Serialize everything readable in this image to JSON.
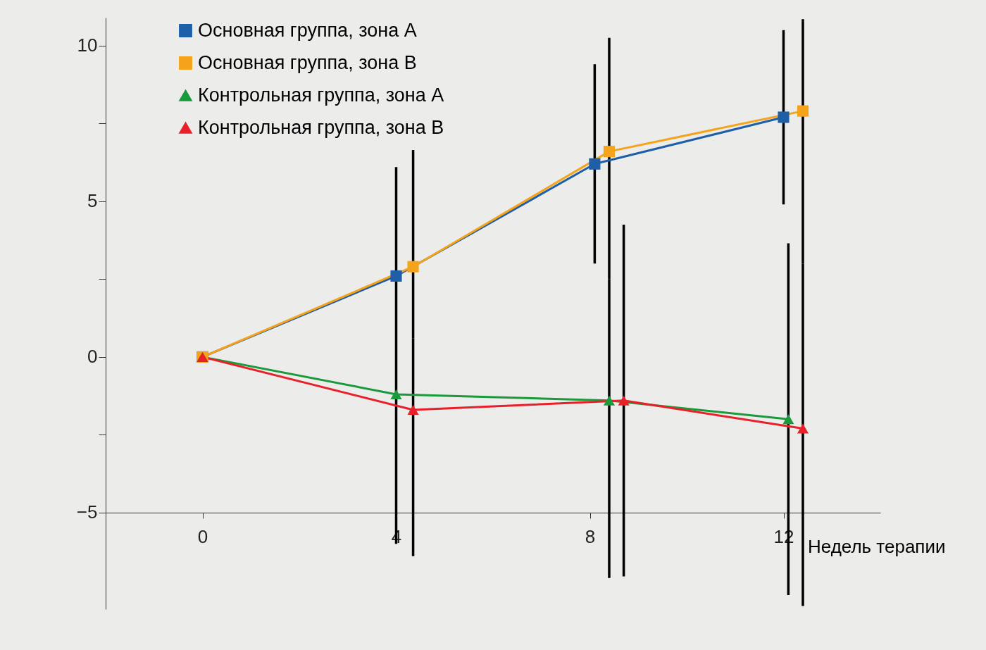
{
  "chart_data": {
    "type": "line",
    "xlabel": "Недель терапии",
    "xlim": [
      -2,
      14
    ],
    "xticks": [
      0,
      4,
      8,
      12
    ],
    "ylim": [
      -8.1,
      10.9
    ],
    "yticks": [
      -5,
      {
        "value": -2.5,
        "label": null
      },
      0,
      {
        "value": 2.5,
        "label": null
      },
      5,
      {
        "value": 7.5,
        "label": null
      },
      10
    ],
    "legend": "top left",
    "line_style": "solid",
    "series": [
      {
        "name": "Основная группа, зона А",
        "color": "#1f5fa8",
        "marker": "square",
        "x": [
          0,
          4,
          8.1,
          12
        ],
        "values": [
          0,
          2.6,
          6.2,
          7.7
        ],
        "errors": [
          null,
          [
            0.7,
            6.1
          ],
          3.2,
          [
            4.9,
            10.5
          ]
        ]
      },
      {
        "name": "Основная группа, зона В",
        "color": "#f5a31a",
        "marker": "square",
        "x": [
          0,
          4.35,
          8.4,
          12.4
        ],
        "values": [
          0,
          2.9,
          6.6,
          7.9
        ],
        "errors": [
          null,
          [
            0.6,
            6.65
          ],
          [
            2.5,
            10.25
          ],
          [
            3.0,
            10.85
          ]
        ]
      },
      {
        "name": "Контрольная группа, зона А",
        "color": "#1a9a3a",
        "marker": "triangle",
        "x": [
          0,
          4,
          8.4,
          12.1
        ],
        "values": [
          0,
          -1.2,
          -1.4,
          -2.0
        ],
        "errors": [
          null,
          [
            -6.0,
            0.7
          ],
          [
            -7.1,
            2.5
          ],
          [
            -7.65,
            3.65
          ]
        ]
      },
      {
        "name": "Контрольная группа, зона В",
        "color": "#e8202a",
        "marker": "triangle",
        "x": [
          0,
          4.35,
          8.7,
          12.4
        ],
        "values": [
          0,
          -1.7,
          -1.4,
          -2.3
        ],
        "errors": [
          null,
          [
            -6.4,
            0.6
          ],
          5.65,
          [
            -8.0,
            3.0
          ]
        ]
      }
    ]
  }
}
